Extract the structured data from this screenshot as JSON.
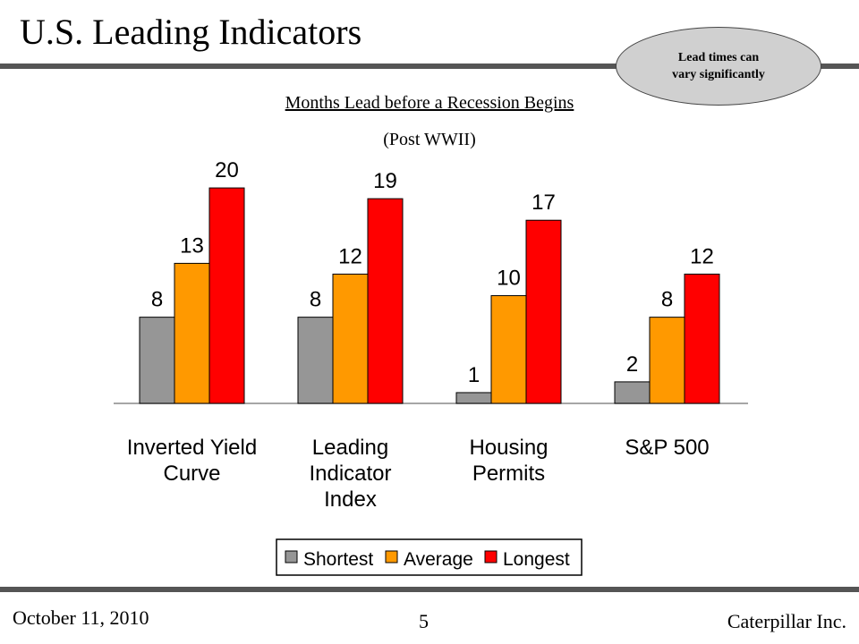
{
  "slide": {
    "title": "U.S. Leading Indicators",
    "callout": {
      "line1": "Lead times can",
      "line2": "vary significantly"
    }
  },
  "footer": {
    "date": "October 11, 2010",
    "page": "5",
    "company": "Caterpillar Inc."
  },
  "chart_data": {
    "type": "bar",
    "title": "Months Lead before a Recession Begins",
    "subtitle": "(Post WWII)",
    "xlabel": "",
    "ylabel": "",
    "ylim": [
      0,
      22
    ],
    "grid": false,
    "legend": "bottom",
    "categories": [
      [
        "Inverted Yield",
        "Curve"
      ],
      [
        "Leading",
        "Indicator",
        "Index"
      ],
      [
        "Housing",
        "Permits"
      ],
      [
        "S&P 500"
      ]
    ],
    "series": [
      {
        "name": "Shortest",
        "color": "#969696",
        "values": [
          8,
          8,
          1,
          2
        ]
      },
      {
        "name": "Average",
        "color": "#ff9900",
        "values": [
          13,
          12,
          10,
          8
        ]
      },
      {
        "name": "Longest",
        "color": "#ff0000",
        "values": [
          20,
          19,
          17,
          12
        ]
      }
    ]
  }
}
